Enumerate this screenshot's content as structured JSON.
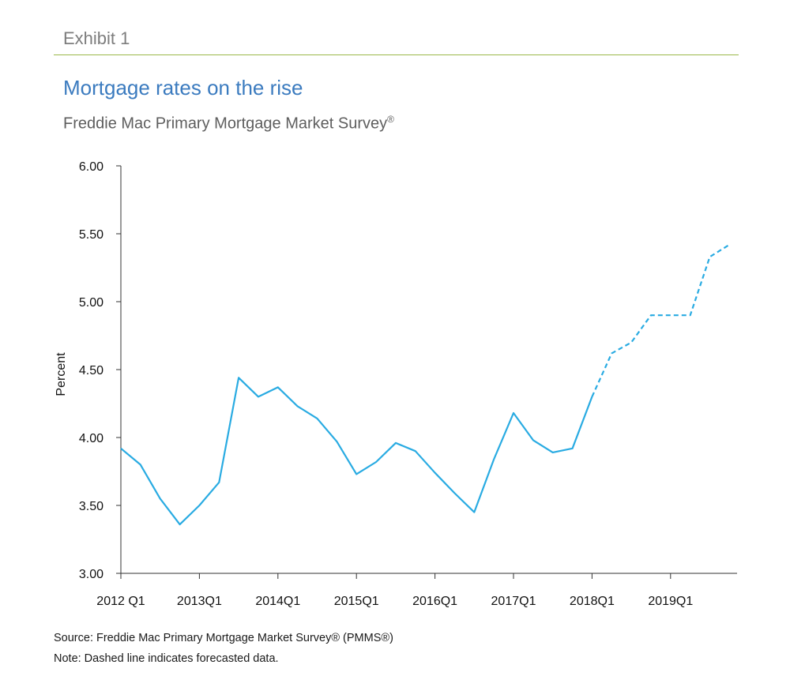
{
  "header": {
    "exhibit": "Exhibit 1",
    "title": "Mortgage rates on the rise",
    "subtitle": "Freddie Mac Primary Mortgage Market Survey",
    "subtitle_mark": "®"
  },
  "footer": {
    "source": "Source: Freddie Mac Primary Mortgage Market Survey® (PMMS®)",
    "note": "Note: Dashed line indicates forecasted data."
  },
  "chart_data": {
    "type": "line",
    "title": "Mortgage rates on the rise",
    "xlabel": "",
    "ylabel": "Percent",
    "ylim": [
      3.0,
      6.0
    ],
    "yticks": [
      "3.00",
      "3.50",
      "4.00",
      "4.50",
      "5.00",
      "5.50",
      "6.00"
    ],
    "xticks": [
      "2012 Q1",
      "2013Q1",
      "2014Q1",
      "2015Q1",
      "2016Q1",
      "2017Q1",
      "2018Q1",
      "2019Q1"
    ],
    "x": [
      "2012Q1",
      "2012Q2",
      "2012Q3",
      "2012Q4",
      "2013Q1",
      "2013Q2",
      "2013Q3",
      "2013Q4",
      "2014Q1",
      "2014Q2",
      "2014Q3",
      "2014Q4",
      "2015Q1",
      "2015Q2",
      "2015Q3",
      "2015Q4",
      "2016Q1",
      "2016Q2",
      "2016Q3",
      "2016Q4",
      "2017Q1",
      "2017Q2",
      "2017Q3",
      "2017Q4",
      "2018Q1",
      "2018Q2",
      "2018Q3",
      "2018Q4",
      "2019Q1",
      "2019Q2",
      "2019Q3",
      "2019Q4"
    ],
    "series": [
      {
        "style": "solid",
        "color": "#29abe2",
        "x": [
          "2012Q1",
          "2012Q2",
          "2012Q3",
          "2012Q4",
          "2013Q1",
          "2013Q2",
          "2013Q3",
          "2013Q4",
          "2014Q1",
          "2014Q2",
          "2014Q3",
          "2014Q4",
          "2015Q1",
          "2015Q2",
          "2015Q3",
          "2015Q4",
          "2016Q1",
          "2016Q2",
          "2016Q3",
          "2016Q4",
          "2017Q1",
          "2017Q2",
          "2017Q3",
          "2017Q4",
          "2018Q1"
        ],
        "values": [
          3.92,
          3.8,
          3.55,
          3.36,
          3.5,
          3.67,
          4.44,
          4.3,
          4.37,
          4.23,
          4.14,
          3.97,
          3.73,
          3.82,
          3.96,
          3.9,
          3.74,
          3.59,
          3.45,
          3.84,
          4.18,
          3.98,
          3.89,
          3.92,
          4.3
        ]
      },
      {
        "style": "dashed",
        "color": "#29abe2",
        "x": [
          "2018Q1",
          "2018Q2",
          "2018Q3",
          "2018Q4",
          "2019Q1",
          "2019Q2",
          "2019Q3",
          "2019Q4"
        ],
        "values": [
          4.3,
          4.62,
          4.7,
          4.9,
          4.9,
          4.9,
          5.33,
          5.42
        ]
      }
    ]
  }
}
